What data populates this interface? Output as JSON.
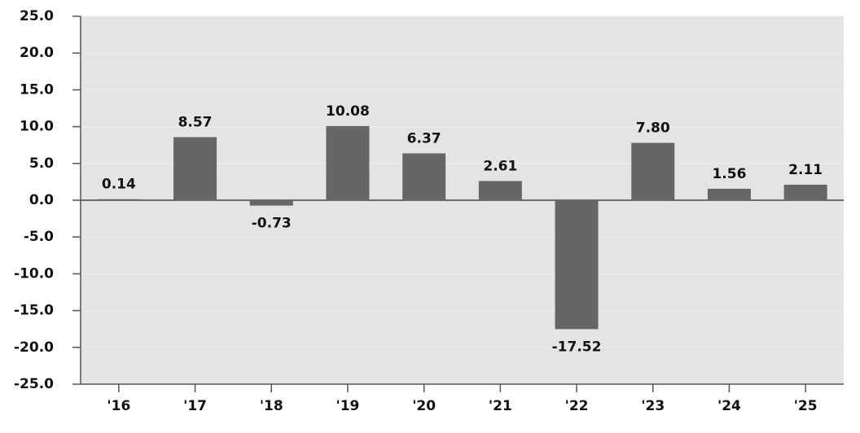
{
  "chart_data": {
    "type": "bar",
    "categories": [
      "'16",
      "'17",
      "'18",
      "'19",
      "'20",
      "'21",
      "'22",
      "'23",
      "'24",
      "'25"
    ],
    "values": [
      0.14,
      8.57,
      -0.73,
      10.08,
      6.37,
      2.61,
      -17.52,
      7.8,
      1.56,
      2.11
    ],
    "value_labels": [
      "0.14",
      "8.57",
      "-0.73",
      "10.08",
      "6.37",
      "2.61",
      "-17.52",
      "7.80",
      "1.56",
      "2.11"
    ],
    "color": "#666666",
    "ylim": [
      -25,
      25
    ],
    "yticks": [
      {
        "value": -25,
        "label": "-25.0"
      },
      {
        "value": -20,
        "label": "-20.0"
      },
      {
        "value": -15,
        "label": "-15.0"
      },
      {
        "value": -10,
        "label": "-10.0"
      },
      {
        "value": -5,
        "label": "-5.0"
      },
      {
        "value": 0,
        "label": "0.0"
      },
      {
        "value": 5,
        "label": "5.0"
      },
      {
        "value": 10,
        "label": "10.0"
      },
      {
        "value": 15,
        "label": "15.0"
      },
      {
        "value": 20,
        "label": "20.0"
      },
      {
        "value": 25,
        "label": "25.0"
      }
    ],
    "grid": true
  }
}
